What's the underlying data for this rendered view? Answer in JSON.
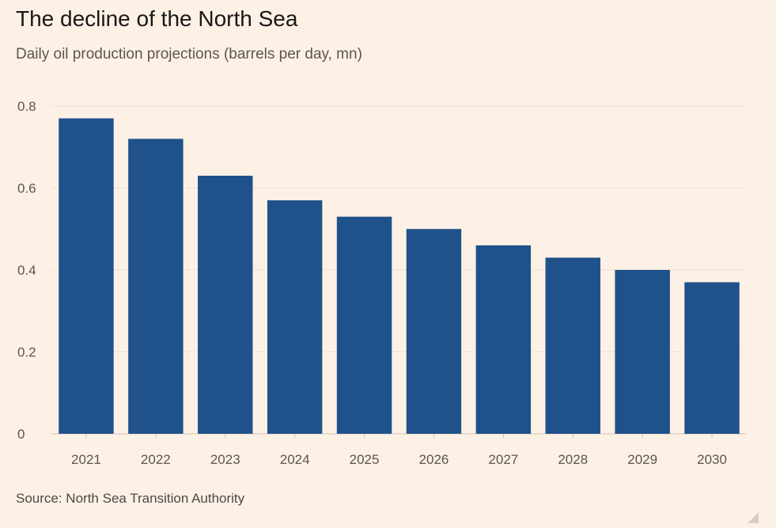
{
  "chart_data": {
    "type": "bar",
    "title": "The decline of the North Sea",
    "subtitle": "Daily oil production projections (barrels per day, mn)",
    "source": "Source: North Sea Transition Authority",
    "categories": [
      "2021",
      "2022",
      "2023",
      "2024",
      "2025",
      "2026",
      "2027",
      "2028",
      "2029",
      "2030"
    ],
    "values": [
      0.77,
      0.72,
      0.63,
      0.57,
      0.53,
      0.5,
      0.46,
      0.43,
      0.4,
      0.37
    ],
    "xlabel": "",
    "ylabel": "",
    "ylim": [
      0,
      0.8
    ],
    "yticks": [
      0,
      0.2,
      0.4,
      0.6,
      0.8
    ],
    "ytick_labels": [
      "0",
      "0.2",
      "0.4",
      "0.6",
      "0.8"
    ],
    "grid": true,
    "colors": {
      "bar": "#1f528a",
      "grid": "#ede0d4",
      "axis": "#cfc3b8",
      "background": "#fdf1e6"
    }
  }
}
